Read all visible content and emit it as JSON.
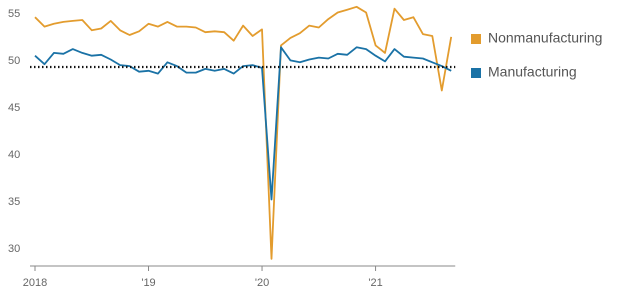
{
  "chart_data": {
    "type": "line",
    "categories": [
      "2018",
      null,
      null,
      null,
      null,
      null,
      null,
      null,
      null,
      null,
      null,
      null,
      "'19",
      null,
      null,
      null,
      null,
      null,
      null,
      null,
      null,
      null,
      null,
      null,
      "'20",
      null,
      null,
      null,
      null,
      null,
      null,
      null,
      null,
      null,
      null,
      null,
      "'21",
      null,
      null,
      null,
      null,
      null,
      null,
      null,
      null
    ],
    "series": [
      {
        "name": "Nonmanufacturing",
        "color": "#e39c2e",
        "values": [
          55.3,
          54.3,
          54.6,
          54.8,
          54.9,
          55.0,
          53.9,
          54.1,
          54.9,
          53.9,
          53.4,
          53.8,
          54.6,
          54.3,
          54.8,
          54.3,
          54.3,
          54.2,
          53.7,
          53.8,
          53.7,
          52.8,
          54.4,
          53.3,
          54.0,
          29.6,
          52.3,
          53.1,
          53.6,
          54.4,
          54.2,
          55.1,
          55.8,
          56.1,
          56.4,
          55.8,
          52.3,
          51.5,
          56.2,
          55.0,
          55.3,
          53.5,
          53.3,
          47.5,
          53.2
        ]
      },
      {
        "name": "Manufacturing",
        "color": "#1a72a6",
        "values": [
          51.2,
          50.3,
          51.5,
          51.4,
          51.9,
          51.5,
          51.2,
          51.3,
          50.8,
          50.2,
          50.1,
          49.5,
          49.6,
          49.3,
          50.5,
          50.1,
          49.4,
          49.4,
          49.8,
          49.6,
          49.8,
          49.3,
          50.1,
          50.2,
          49.9,
          35.9,
          52.1,
          50.7,
          50.5,
          50.8,
          51.0,
          50.9,
          51.4,
          51.3,
          52.1,
          51.9,
          51.2,
          50.6,
          51.9,
          51.1,
          51.0,
          50.9,
          50.5,
          50.1,
          49.6
        ]
      }
    ],
    "ylim": [
      29,
      56.5
    ],
    "yticks": [
      30,
      35,
      40,
      45,
      50,
      55
    ],
    "reference_line": 50,
    "grid": false
  }
}
